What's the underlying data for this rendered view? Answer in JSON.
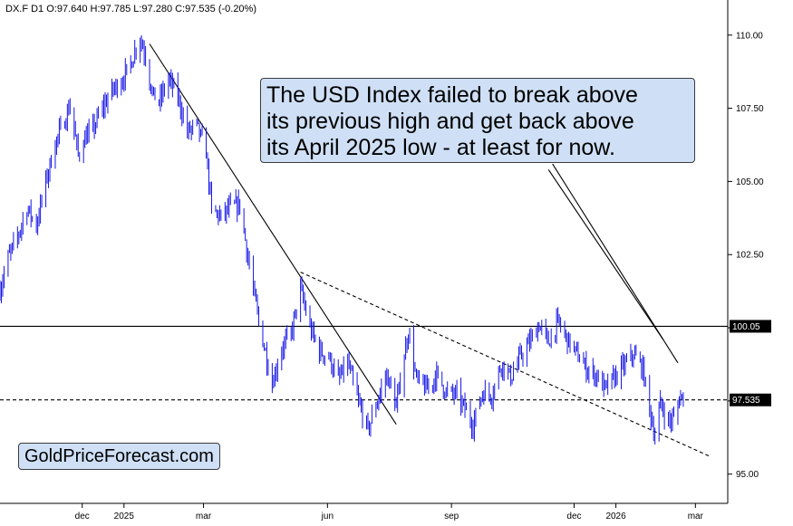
{
  "header": {
    "ohlc_text": "DX.F  D1  O:97.640  H:97.785  L:97.280  C:97.535  (-0.20%)"
  },
  "annotation": {
    "lines": [
      "The USD Index failed to break above",
      "its previous high and get back above",
      "its April 2025 low - at least for now."
    ]
  },
  "brand": {
    "text": "GoldPriceForecast.com"
  },
  "colors": {
    "series": "#1515e6",
    "line": "#000000",
    "box_fill": "#cfe0f6"
  },
  "chart_data": {
    "type": "line",
    "x_axis": {
      "ticks": [
        "dec",
        "2025",
        "mar",
        "jun",
        "sep",
        "dec",
        "2026",
        "mar"
      ],
      "tick_dates": [
        "2024-12-01",
        "2025-01-01",
        "2025-03-01",
        "2025-06-01",
        "2025-09-01",
        "2025-12-01",
        "2026-01-01",
        "2026-03-01"
      ],
      "range": [
        "2024-10-01",
        "2026-03-25"
      ]
    },
    "y_axis": {
      "ticks": [
        "95.00",
        "97.50",
        "100.00",
        "102.50",
        "105.00",
        "107.50",
        "110.00"
      ],
      "tick_values": [
        95,
        97.5,
        100,
        102.5,
        105,
        107.5,
        110
      ],
      "range": [
        94.0,
        111.2
      ],
      "position": "right"
    },
    "price_tags": [
      {
        "label": "100.05",
        "value": 100.05
      },
      {
        "label": "97.535",
        "value": 97.535
      }
    ],
    "series": [
      {
        "style": "daily range bars",
        "points": [
          [
            "2024-10-01",
            101.3
          ],
          [
            "2024-10-07",
            102.4
          ],
          [
            "2024-10-14",
            103.1
          ],
          [
            "2024-10-21",
            104.1
          ],
          [
            "2024-10-28",
            103.5
          ],
          [
            "2024-11-04",
            105.0
          ],
          [
            "2024-11-11",
            106.3
          ],
          [
            "2024-11-18",
            107.1
          ],
          [
            "2024-11-22",
            107.6
          ],
          [
            "2024-11-28",
            105.9
          ],
          [
            "2024-12-02",
            106.4
          ],
          [
            "2024-12-09",
            106.8
          ],
          [
            "2024-12-16",
            107.5
          ],
          [
            "2024-12-23",
            108.1
          ],
          [
            "2024-12-31",
            108.5
          ],
          [
            "2025-01-06",
            109.0
          ],
          [
            "2025-01-10",
            109.6
          ],
          [
            "2025-01-13",
            109.9
          ],
          [
            "2025-01-17",
            109.3
          ],
          [
            "2025-01-22",
            108.0
          ],
          [
            "2025-01-27",
            107.7
          ],
          [
            "2025-02-03",
            108.5
          ],
          [
            "2025-02-10",
            107.9
          ],
          [
            "2025-02-17",
            106.7
          ],
          [
            "2025-02-24",
            106.9
          ],
          [
            "2025-03-03",
            106.0
          ],
          [
            "2025-03-07",
            104.0
          ],
          [
            "2025-03-14",
            103.8
          ],
          [
            "2025-03-21",
            104.1
          ],
          [
            "2025-03-28",
            104.2
          ],
          [
            "2025-04-03",
            102.4
          ],
          [
            "2025-04-11",
            100.2
          ],
          [
            "2025-04-21",
            98.1
          ],
          [
            "2025-04-28",
            99.3
          ],
          [
            "2025-05-05",
            99.8
          ],
          [
            "2025-05-12",
            101.3
          ],
          [
            "2025-05-19",
            100.0
          ],
          [
            "2025-05-26",
            99.2
          ],
          [
            "2025-06-02",
            99.0
          ],
          [
            "2025-06-09",
            98.2
          ],
          [
            "2025-06-16",
            98.8
          ],
          [
            "2025-06-23",
            97.6
          ],
          [
            "2025-07-01",
            96.5
          ],
          [
            "2025-07-08",
            97.5
          ],
          [
            "2025-07-15",
            98.4
          ],
          [
            "2025-07-22",
            97.3
          ],
          [
            "2025-07-31",
            99.9
          ],
          [
            "2025-08-06",
            98.2
          ],
          [
            "2025-08-14",
            97.9
          ],
          [
            "2025-08-21",
            98.4
          ],
          [
            "2025-08-28",
            97.8
          ],
          [
            "2025-09-05",
            97.7
          ],
          [
            "2025-09-10",
            97.3
          ],
          [
            "2025-09-17",
            96.7
          ],
          [
            "2025-09-24",
            97.8
          ],
          [
            "2025-10-01",
            97.7
          ],
          [
            "2025-10-08",
            98.8
          ],
          [
            "2025-10-15",
            98.3
          ],
          [
            "2025-10-22",
            99.0
          ],
          [
            "2025-10-29",
            99.5
          ],
          [
            "2025-11-05",
            100.1
          ],
          [
            "2025-11-12",
            99.5
          ],
          [
            "2025-11-19",
            100.2
          ],
          [
            "2025-11-26",
            99.6
          ],
          [
            "2025-12-03",
            99.1
          ],
          [
            "2025-12-10",
            98.6
          ],
          [
            "2025-12-17",
            98.4
          ],
          [
            "2025-12-24",
            97.9
          ],
          [
            "2025-12-31",
            98.3
          ],
          [
            "2026-01-07",
            98.7
          ],
          [
            "2026-01-14",
            99.1
          ],
          [
            "2026-01-21",
            98.6
          ],
          [
            "2026-01-26",
            97.2
          ],
          [
            "2026-01-30",
            96.3
          ],
          [
            "2026-02-03",
            97.4
          ],
          [
            "2026-02-09",
            96.8
          ],
          [
            "2026-02-13",
            96.9
          ],
          [
            "2026-02-18",
            97.7
          ],
          [
            "2026-02-20",
            97.55
          ]
        ]
      }
    ],
    "reference_lines": [
      {
        "kind": "solid-horizontal",
        "value": 100.05
      },
      {
        "kind": "dashed-horizontal",
        "value": 97.535
      },
      {
        "kind": "solid-trend",
        "from": [
          "2025-01-20",
          109.7
        ],
        "to": [
          "2025-07-22",
          96.7
        ]
      },
      {
        "kind": "dashed-trend",
        "from": [
          "2025-05-12",
          101.9
        ],
        "to": [
          "2026-03-12",
          95.6
        ]
      },
      {
        "kind": "annotation-pointer",
        "from": [
          "2025-11-15",
          105.6
        ],
        "to": [
          "2026-02-16",
          98.8
        ]
      },
      {
        "kind": "annotation-pointer",
        "from": [
          "2025-11-12",
          105.4
        ],
        "to": [
          "2026-02-05",
          99.6
        ]
      }
    ],
    "grid": false,
    "legend": "none"
  }
}
